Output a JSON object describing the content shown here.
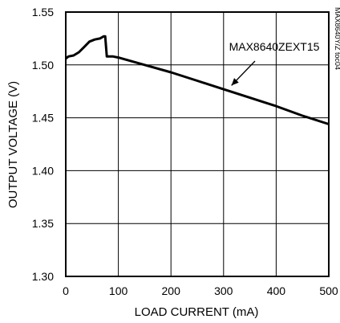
{
  "chart_data": {
    "type": "line",
    "title": "",
    "xlabel": "LOAD CURRENT (mA)",
    "ylabel": "OUTPUT VOLTAGE (V)",
    "xlim": [
      0,
      500
    ],
    "ylim": [
      1.3,
      1.55
    ],
    "x_ticks": [
      0,
      100,
      200,
      300,
      400,
      500
    ],
    "x_tick_labels": [
      "0",
      "100",
      "200",
      "300",
      "400",
      "500"
    ],
    "y_ticks": [
      1.3,
      1.35,
      1.4,
      1.45,
      1.5,
      1.55
    ],
    "y_tick_labels": [
      "1.30",
      "1.35",
      "1.40",
      "1.45",
      "1.50",
      "1.55"
    ],
    "grid": true,
    "series": [
      {
        "name": "MAX8640ZEXT15",
        "color": "#000000",
        "x": [
          0,
          5,
          15,
          25,
          35,
          45,
          55,
          65,
          72,
          75,
          78,
          82,
          90,
          100,
          150,
          200,
          250,
          300,
          350,
          400,
          450,
          500
        ],
        "y": [
          1.506,
          1.508,
          1.509,
          1.512,
          1.517,
          1.522,
          1.524,
          1.525,
          1.527,
          1.527,
          1.508,
          1.508,
          1.508,
          1.507,
          1.5,
          1.493,
          1.485,
          1.477,
          1.469,
          1.461,
          1.452,
          1.444
        ]
      }
    ],
    "annotations": [
      {
        "text": "MAX8640ZEXT15",
        "target_x": 315,
        "target_y": 1.476
      }
    ],
    "side_text": "MAX8640Y/Z toc04"
  }
}
